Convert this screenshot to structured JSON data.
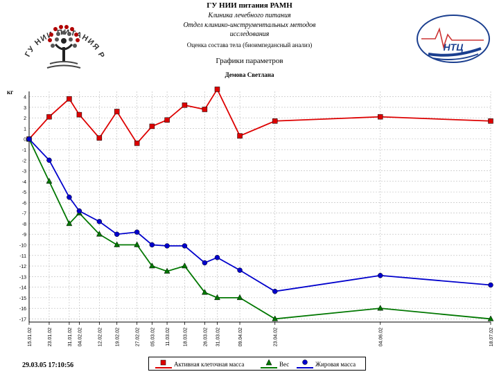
{
  "header": {
    "institution": "ГУ НИИ питания РАМН",
    "dept_line1": "Клиника лечебного питания",
    "dept_line2": "Отдел клинико-инструментальных методов",
    "dept_line3": "исследования",
    "calc_line": "Оценка состава тела (биоимпедансный анализ)",
    "chart_title": "Графики параметров",
    "patient": "Демова Светлана",
    "logo_left_text": "ГУ НИИ ПИТАНИЯ РАМН",
    "logo_right_text": "НТЦ"
  },
  "footer": {
    "timestamp": "29.03.05  17:10:56"
  },
  "chart_data": {
    "type": "line",
    "title": "Графики параметров",
    "ylabel": "кг",
    "xlabel": "",
    "ylim": [
      -17,
      4.5
    ],
    "yticks": [
      4,
      3,
      2,
      1,
      0,
      -1,
      -2,
      -3,
      -4,
      -5,
      -6,
      -7,
      -8,
      -9,
      -10,
      -11,
      -12,
      -13,
      -14,
      -15,
      -16,
      -17
    ],
    "grid": true,
    "legend_position": "bottom",
    "x": [
      "2002-01-15",
      "2002-01-23",
      "2002-01-31",
      "2002-02-04",
      "2002-02-12",
      "2002-02-19",
      "2002-02-27",
      "2002-03-05",
      "2002-03-11",
      "2002-03-18",
      "2002-03-26",
      "2002-03-31",
      "2002-04-09",
      "2002-04-23",
      "2002-06-04",
      "2002-07-18"
    ],
    "xticklabels": [
      "15.01.02",
      "23.01.02",
      "31.01.02",
      "04.02.02",
      "12.02.02",
      "19.02.02",
      "27.02.02",
      "05.03.02",
      "11.03.02",
      "18.03.02",
      "26.03.02",
      "31.03.02",
      "09.04.02",
      "23.04.02",
      "04.06.02",
      "18.07.02"
    ],
    "series": [
      {
        "name": "Активная клеточная масса",
        "color": "#dd0000",
        "marker": "square",
        "values": [
          0,
          2.1,
          3.8,
          2.3,
          0.1,
          2.6,
          -0.4,
          1.2,
          1.8,
          3.2,
          2.8,
          4.7,
          0.3,
          1.7,
          2.1,
          1.7
        ]
      },
      {
        "name": "Вес",
        "color": "#007700",
        "marker": "triangle",
        "values": [
          0,
          -4,
          -8,
          -7,
          -9,
          -10,
          -10,
          -12,
          -12.5,
          -12,
          -14.5,
          -15,
          -15,
          -17,
          -16,
          -17
        ]
      },
      {
        "name": "Жировая масса",
        "color": "#0000cc",
        "marker": "circle",
        "values": [
          0,
          -2,
          -5.5,
          -6.8,
          -7.8,
          -9,
          -8.8,
          -10,
          -10.1,
          -10.1,
          -11.7,
          -11.2,
          -12.4,
          -14.4,
          -12.9,
          -13.8
        ]
      }
    ]
  }
}
